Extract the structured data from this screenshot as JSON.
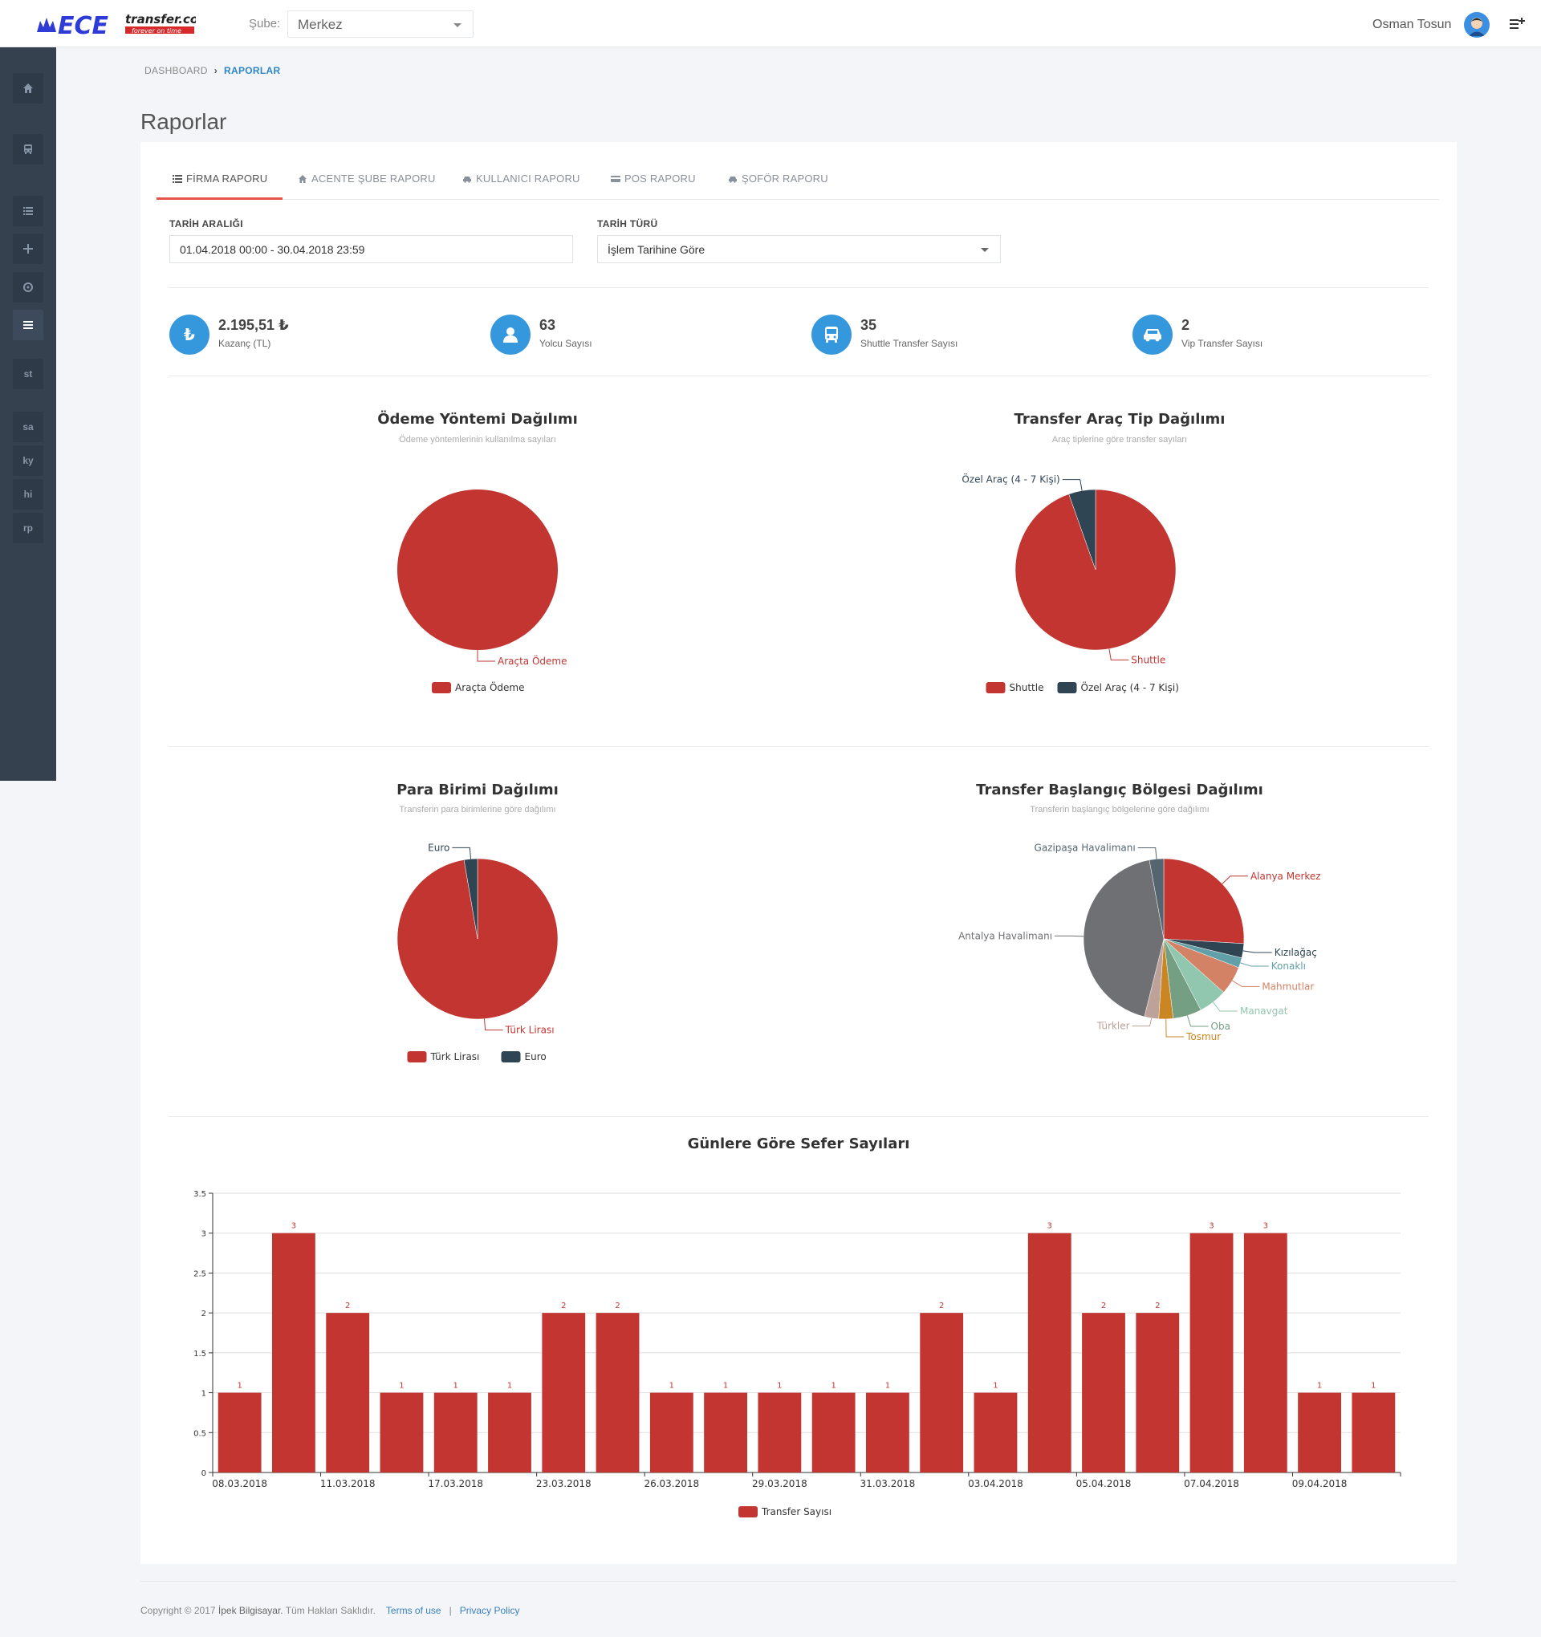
{
  "header": {
    "logo_text": "ECE",
    "logo_sub": "transfer.com",
    "logo_tagline": "forever on time",
    "sube_label": "Şube:",
    "sube_value": "Merkez",
    "user_name": "Osman Tosun"
  },
  "sidebar": {
    "text_items": [
      "st",
      "sa",
      "ky",
      "hi",
      "rp"
    ]
  },
  "breadcrumb": {
    "root": "DASHBOARD",
    "current": "RAPORLAR"
  },
  "page_title": "Raporlar",
  "tabs": [
    {
      "label": "FİRMA RAPORU",
      "icon": "list-icon"
    },
    {
      "label": "ACENTE ŞUBE RAPORU",
      "icon": "home-icon"
    },
    {
      "label": "KULLANICI RAPORU",
      "icon": "car-icon"
    },
    {
      "label": "POS RAPORU",
      "icon": "credit-card-icon"
    },
    {
      "label": "ŞOFÖR RAPORU",
      "icon": "car-icon"
    }
  ],
  "filters": {
    "date_range_label": "TARİH ARALIĞI",
    "date_range_value": "01.04.2018 00:00 - 30.04.2018 23:59",
    "date_type_label": "TARİH TÜRÜ",
    "date_type_value": "İşlem Tarihine Göre"
  },
  "stats": [
    {
      "value": "2.195,51 ₺",
      "label": "Kazanç (TL)",
      "icon": "lira-icon"
    },
    {
      "value": "63",
      "label": "Yolcu Sayısı",
      "icon": "user-icon"
    },
    {
      "value": "35",
      "label": "Shuttle Transfer Sayısı",
      "icon": "bus-icon"
    },
    {
      "value": "2",
      "label": "Vip Transfer Sayısı",
      "icon": "car-icon"
    }
  ],
  "colors": {
    "red": "#c23531",
    "dark": "#2f4554",
    "accent": "#3598dc",
    "tab_underline": "#e5534b"
  },
  "chart_data": [
    {
      "type": "pie",
      "title": "Ödeme Yöntemi Dağılımı",
      "subtitle": "Ödeme yöntemlerinin kullanılma sayıları",
      "series": [
        {
          "name": "Araçta Ödeme",
          "value": 37
        }
      ]
    },
    {
      "type": "pie",
      "title": "Transfer Araç Tip Dağılımı",
      "subtitle": "Araç tiplerine göre transfer sayıları",
      "series": [
        {
          "name": "Shuttle",
          "value": 35
        },
        {
          "name": "Özel Araç (4 - 7 Kişi)",
          "value": 2
        }
      ]
    },
    {
      "type": "pie",
      "title": "Para Birimi Dağılımı",
      "subtitle": "Transferin para birimlerine göre dağılımı",
      "series": [
        {
          "name": "Türk Lirası",
          "value": 36
        },
        {
          "name": "Euro",
          "value": 1
        }
      ]
    },
    {
      "type": "pie",
      "title": "Transfer Başlangıç Bölgesi Dağılımı",
      "subtitle": "Transferin başlangıç bölgelerine göre dağılımı",
      "series": [
        {
          "name": "Alanya Merkez",
          "value": 9
        },
        {
          "name": "Kızılağaç",
          "value": 1
        },
        {
          "name": "Konaklı",
          "value": 0.7
        },
        {
          "name": "Mahmutlar",
          "value": 2
        },
        {
          "name": "Manavgat",
          "value": 2
        },
        {
          "name": "Oba",
          "value": 2
        },
        {
          "name": "Tosmur",
          "value": 1
        },
        {
          "name": "Türkler",
          "value": 1
        },
        {
          "name": "Antalya Havalimanı",
          "value": 15
        },
        {
          "name": "Gazipaşa Havalimanı",
          "value": 1
        }
      ]
    },
    {
      "type": "bar",
      "title": "Günlere Göre Sefer Sayıları",
      "legend": "Transfer Sayısı",
      "ylim": [
        0,
        3.5
      ],
      "yticks": [
        0,
        0.5,
        1,
        1.5,
        2,
        2.5,
        3,
        3.5
      ],
      "xtick_labels": [
        "08.03.2018",
        "11.03.2018",
        "17.03.2018",
        "23.03.2018",
        "26.03.2018",
        "29.03.2018",
        "31.03.2018",
        "03.04.2018",
        "05.04.2018",
        "07.04.2018",
        "09.04.2018"
      ],
      "values": [
        1,
        3,
        2,
        1,
        1,
        1,
        2,
        2,
        1,
        1,
        1,
        1,
        1,
        2,
        1,
        3,
        2,
        2,
        3,
        3,
        1,
        1
      ]
    }
  ],
  "footer": {
    "copyright": "Copyright © 2017",
    "company": "İpek Bilgisayar.",
    "rights": "Tüm Hakları Saklıdır.",
    "terms": "Terms of use",
    "separator": "|",
    "privacy": "Privacy Policy"
  }
}
